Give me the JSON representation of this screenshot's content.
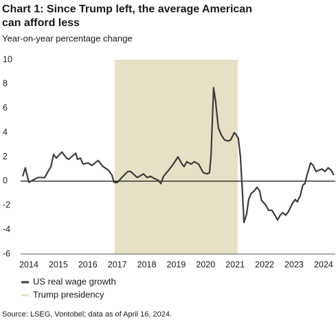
{
  "chart_data": {
    "type": "line",
    "title": [
      "Chart 1: Since Trump left, the average American",
      "can afford less"
    ],
    "subtitle": "Year-on-year percentage change",
    "source": "Source: LSEG, Vontobel; data as of April 16, 2024.",
    "x": [
      2013.79,
      2013.88,
      2014.0,
      2014.3,
      2014.54,
      2014.65,
      2014.75,
      2014.84,
      2014.93,
      2015.12,
      2015.28,
      2015.35,
      2015.59,
      2015.65,
      2015.75,
      2015.84,
      2016.0,
      2016.14,
      2016.35,
      2016.52,
      2016.7,
      2016.82,
      2016.89,
      2017.01,
      2017.15,
      2017.36,
      2017.45,
      2017.59,
      2017.68,
      2017.89,
      2018.01,
      2018.13,
      2018.27,
      2018.38,
      2018.48,
      2018.57,
      2018.71,
      2018.87,
      2019.06,
      2019.2,
      2019.27,
      2019.36,
      2019.5,
      2019.62,
      2019.76,
      2019.92,
      2020.06,
      2020.13,
      2020.18,
      2020.27,
      2020.34,
      2020.43,
      2020.53,
      2020.64,
      2020.76,
      2020.85,
      2020.97,
      2021.04,
      2021.11,
      2021.18,
      2021.25,
      2021.3,
      2021.39,
      2021.46,
      2021.55,
      2021.65,
      2021.74,
      2021.83,
      2021.9,
      2022.02,
      2022.14,
      2022.25,
      2022.35,
      2022.44,
      2022.53,
      2022.62,
      2022.72,
      2022.81,
      2022.93,
      2023.04,
      2023.11,
      2023.21,
      2023.3,
      2023.37,
      2023.44,
      2023.56,
      2023.65,
      2023.74,
      2023.84,
      2023.95,
      2024.05,
      2024.16,
      2024.26,
      2024.35
    ],
    "series": [
      {
        "name": "US real wage growth",
        "color": "#3b3b3b",
        "values": [
          0.4,
          1.1,
          -0.1,
          0.3,
          0.3,
          0.8,
          1.2,
          2.2,
          1.9,
          2.4,
          1.9,
          1.8,
          2.3,
          1.8,
          1.9,
          1.4,
          1.5,
          1.3,
          1.7,
          1.2,
          0.9,
          0.5,
          -0.1,
          -0.1,
          0.3,
          0.8,
          0.8,
          0.5,
          0.3,
          0.6,
          0.3,
          0.4,
          0.2,
          0.1,
          -0.2,
          0.4,
          0.8,
          1.3,
          2.0,
          1.4,
          1.2,
          1.6,
          1.4,
          1.6,
          1.4,
          0.7,
          0.6,
          0.7,
          2.0,
          7.7,
          6.5,
          4.4,
          3.8,
          3.4,
          3.3,
          3.4,
          4.0,
          3.8,
          3.5,
          2.0,
          -1.0,
          -3.4,
          -2.7,
          -1.5,
          -1.0,
          -0.8,
          -0.5,
          -0.8,
          -1.6,
          -1.9,
          -2.4,
          -2.4,
          -2.8,
          -3.2,
          -2.8,
          -2.6,
          -2.8,
          -2.5,
          -1.9,
          -1.5,
          -1.7,
          -1.2,
          -0.3,
          -0.2,
          0.5,
          1.5,
          1.3,
          0.8,
          0.9,
          1.0,
          0.8,
          1.1,
          0.9,
          0.5
        ]
      }
    ],
    "highlight": {
      "name": "Trump presidency",
      "color": "#e6e0c6",
      "range": [
        2016.91,
        2021.09
      ]
    },
    "xlim": [
      2013.72,
      2024.4
    ],
    "xticks": [
      2014,
      2015,
      2016,
      2017,
      2018,
      2019,
      2020,
      2021,
      2022,
      2023,
      2024
    ],
    "ylim": [
      -6,
      10
    ],
    "yticks": [
      -6,
      -4,
      -2,
      0,
      2,
      4,
      6,
      8,
      10
    ],
    "zero_line": true,
    "legend": "bottom-left"
  }
}
